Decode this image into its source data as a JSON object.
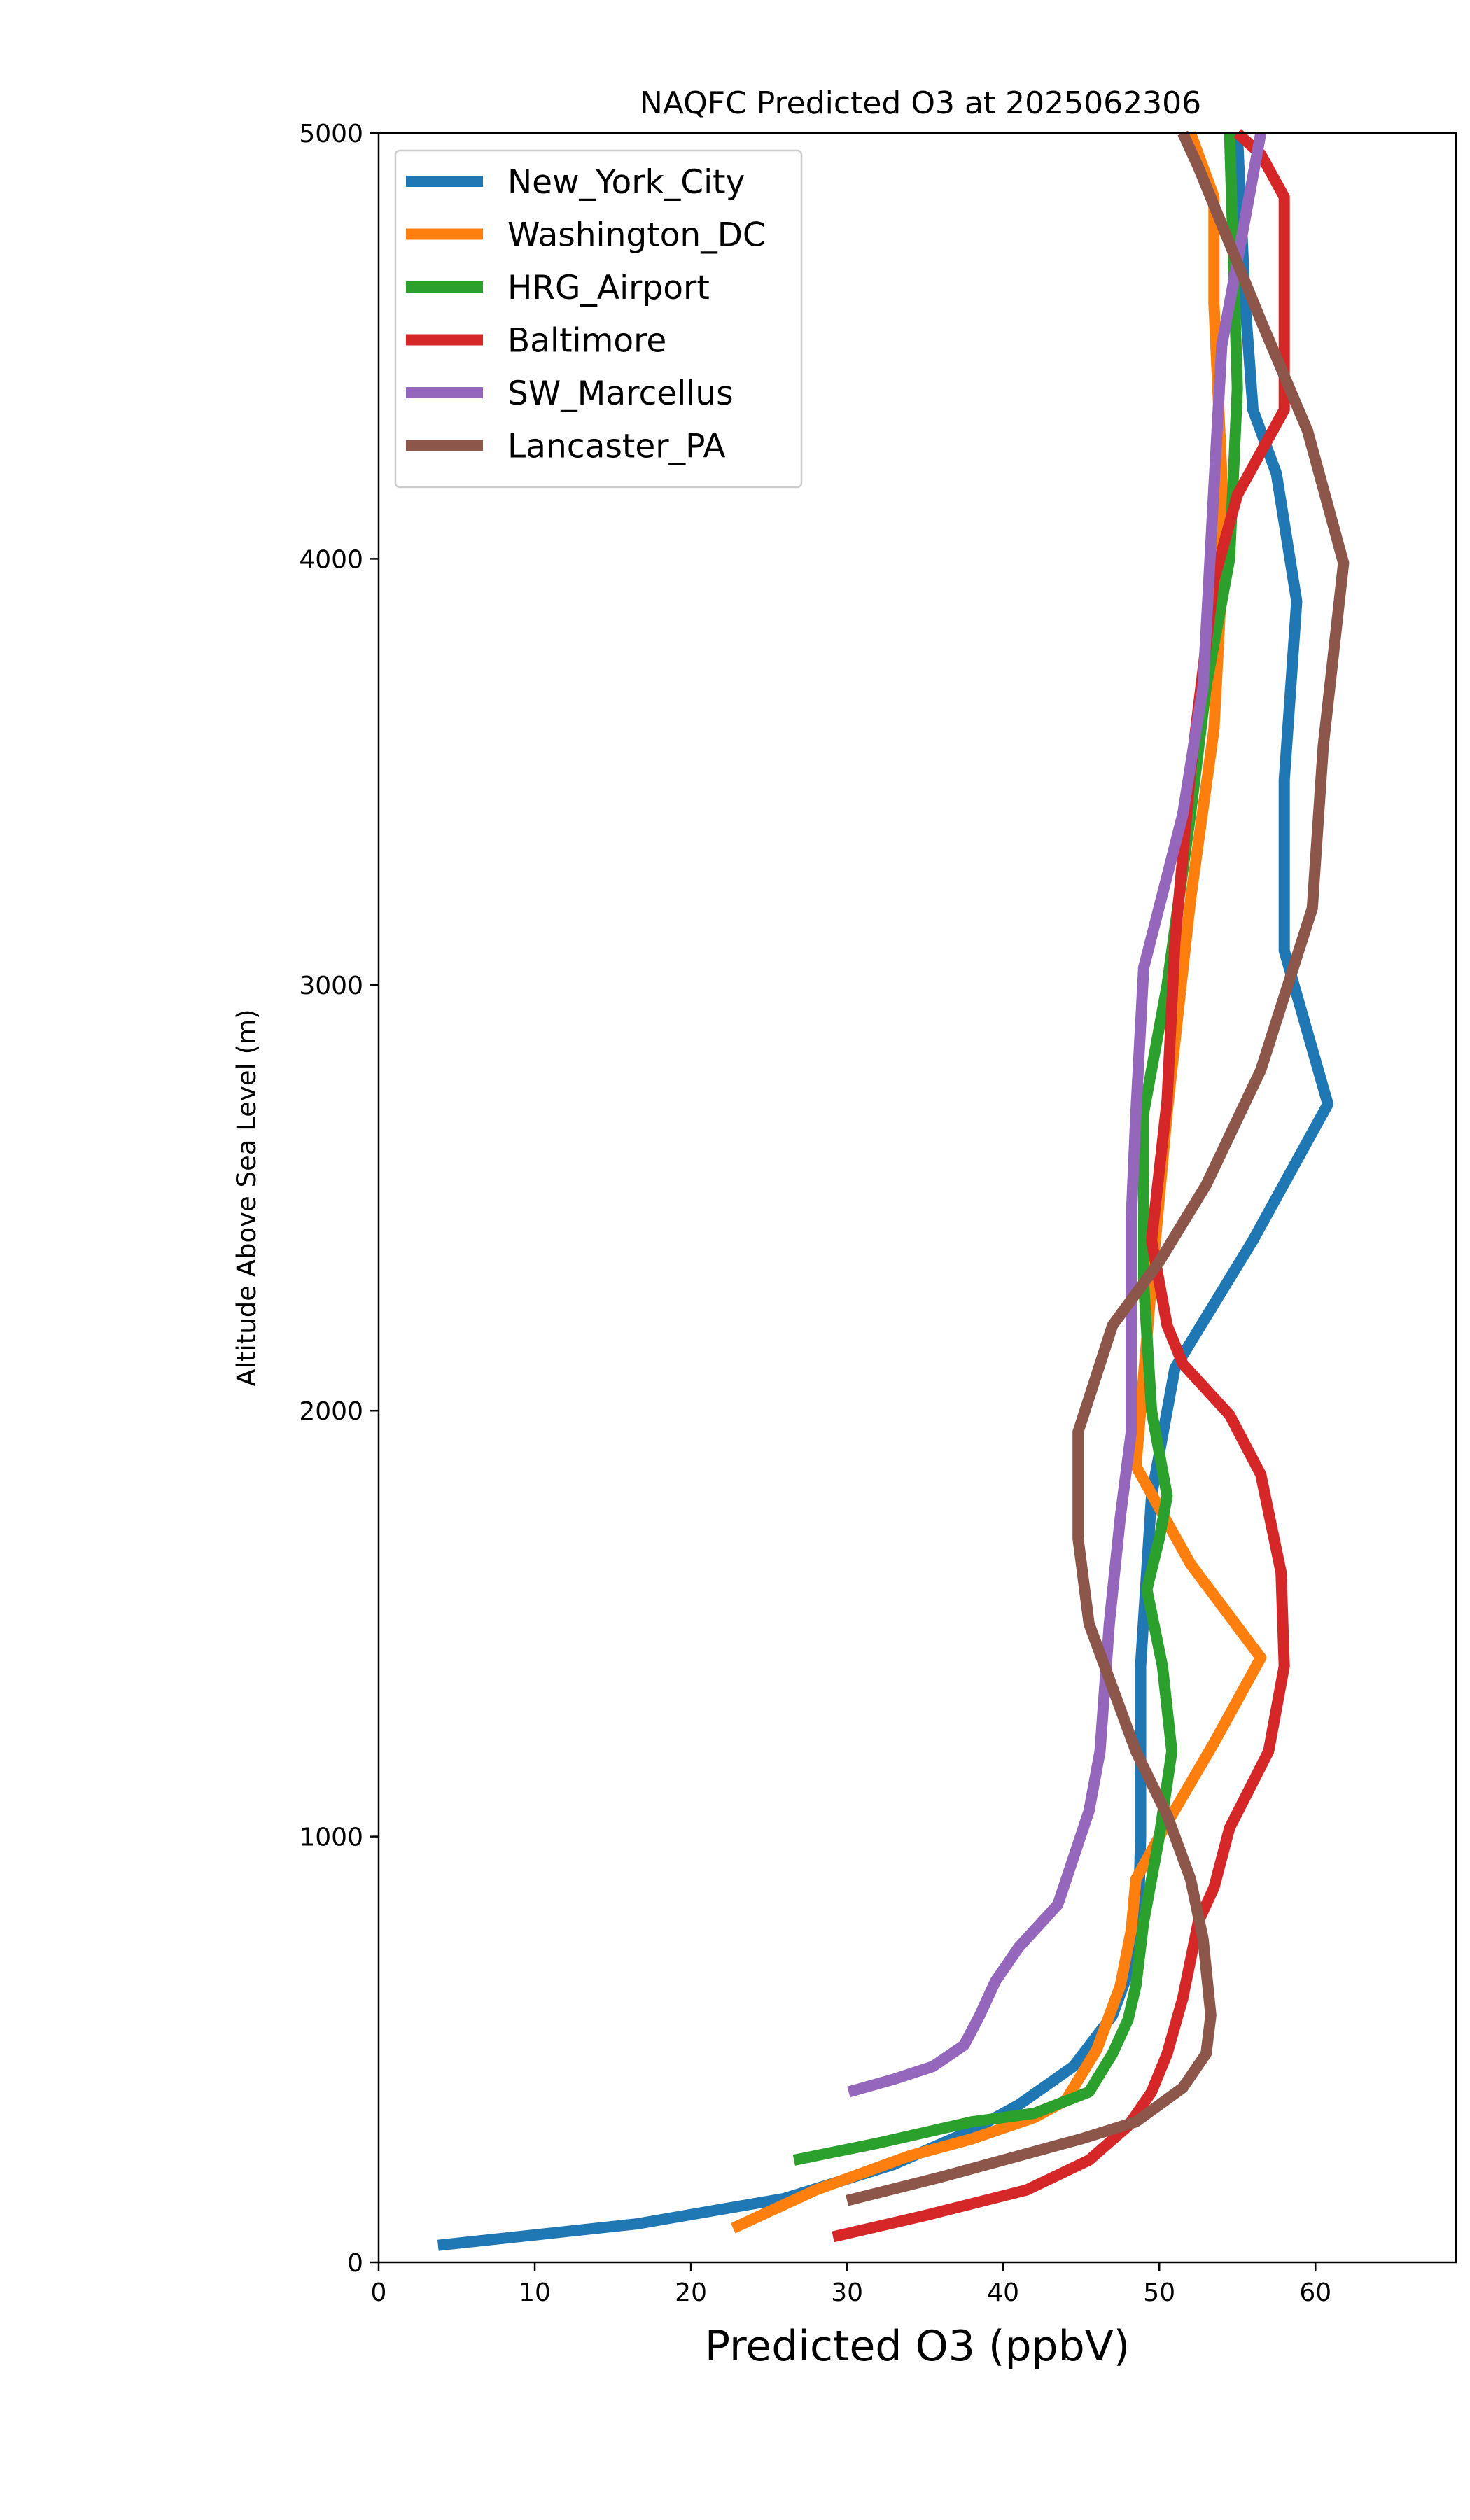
{
  "chart_data": {
    "type": "line",
    "title": "NAQFC Predicted O3 at 2025062306",
    "xlabel": "Predicted O3 (ppbV)",
    "ylabel": "Altitude Above Sea Level (m)",
    "xlim": [
      0,
      69
    ],
    "ylim": [
      0,
      5000
    ],
    "x_ticks": [
      0,
      10,
      20,
      30,
      40,
      50,
      60
    ],
    "y_ticks": [
      0,
      1000,
      2000,
      3000,
      4000,
      5000
    ],
    "grid": false,
    "legend_position": "upper-left",
    "series": [
      {
        "name": "New_York_City",
        "color": "#1f77b4",
        "points": [
          [
            3.8,
            40
          ],
          [
            16.5,
            90
          ],
          [
            26,
            150
          ],
          [
            33,
            230
          ],
          [
            38,
            310
          ],
          [
            41,
            370
          ],
          [
            44.5,
            460
          ],
          [
            47,
            580
          ],
          [
            48.2,
            700
          ],
          [
            48.7,
            850
          ],
          [
            48.8,
            1000
          ],
          [
            48.8,
            1400
          ],
          [
            49.5,
            1800
          ],
          [
            51,
            2100
          ],
          [
            56,
            2400
          ],
          [
            60.8,
            2720
          ],
          [
            58,
            3080
          ],
          [
            58,
            3480
          ],
          [
            58.8,
            3900
          ],
          [
            57.5,
            4200
          ],
          [
            56,
            4350
          ],
          [
            55.5,
            4600
          ],
          [
            55,
            5000
          ]
        ]
      },
      {
        "name": "Washington_DC",
        "color": "#ff7f0e",
        "points": [
          [
            22.7,
            80
          ],
          [
            28,
            170
          ],
          [
            34,
            250
          ],
          [
            38,
            290
          ],
          [
            42,
            340
          ],
          [
            44,
            380
          ],
          [
            46,
            500
          ],
          [
            47.5,
            650
          ],
          [
            48.2,
            780
          ],
          [
            48.5,
            900
          ],
          [
            50,
            1000
          ],
          [
            53.5,
            1220
          ],
          [
            56.5,
            1420
          ],
          [
            52,
            1640
          ],
          [
            48.5,
            1870
          ],
          [
            49.5,
            2300
          ],
          [
            50.5,
            2700
          ],
          [
            52,
            3200
          ],
          [
            53.5,
            3600
          ],
          [
            54,
            3950
          ],
          [
            54,
            4200
          ],
          [
            53.5,
            4600
          ],
          [
            53.5,
            4850
          ],
          [
            52,
            5000
          ]
        ]
      },
      {
        "name": "HRG_Airport",
        "color": "#2ca02c",
        "points": [
          [
            26.6,
            240
          ],
          [
            32,
            280
          ],
          [
            38,
            330
          ],
          [
            42,
            350
          ],
          [
            45.5,
            400
          ],
          [
            47,
            490
          ],
          [
            48,
            570
          ],
          [
            48.5,
            650
          ],
          [
            49,
            800
          ],
          [
            49.5,
            900
          ],
          [
            50,
            1000
          ],
          [
            50.8,
            1200
          ],
          [
            50.2,
            1400
          ],
          [
            49.2,
            1580
          ],
          [
            50,
            1700
          ],
          [
            50.5,
            1800
          ],
          [
            49.5,
            2000
          ],
          [
            49,
            2300
          ],
          [
            49,
            2700
          ],
          [
            50.5,
            3000
          ],
          [
            52,
            3400
          ],
          [
            53,
            3700
          ],
          [
            54.5,
            4000
          ],
          [
            55,
            4400
          ],
          [
            54.5,
            5000
          ]
        ]
      },
      {
        "name": "Baltimore",
        "color": "#d62728",
        "points": [
          [
            29.1,
            60
          ],
          [
            35,
            110
          ],
          [
            41.5,
            170
          ],
          [
            45.5,
            240
          ],
          [
            48,
            320
          ],
          [
            49.5,
            400
          ],
          [
            50.5,
            490
          ],
          [
            51.5,
            620
          ],
          [
            52.5,
            800
          ],
          [
            53.5,
            880
          ],
          [
            54.5,
            1020
          ],
          [
            57,
            1200
          ],
          [
            58,
            1400
          ],
          [
            57.8,
            1620
          ],
          [
            56.5,
            1850
          ],
          [
            54.5,
            1990
          ],
          [
            51.5,
            2110
          ],
          [
            50.5,
            2200
          ],
          [
            49.5,
            2400
          ],
          [
            50.5,
            2730
          ],
          [
            51,
            3100
          ],
          [
            52,
            3500
          ],
          [
            53.5,
            3950
          ],
          [
            55,
            4150
          ],
          [
            58,
            4350
          ],
          [
            58,
            4850
          ],
          [
            56.5,
            4950
          ],
          [
            55,
            5000
          ]
        ]
      },
      {
        "name": "SW_Marcellus",
        "color": "#9467bd",
        "points": [
          [
            30.1,
            400
          ],
          [
            33,
            430
          ],
          [
            35.5,
            460
          ],
          [
            37.5,
            510
          ],
          [
            38.5,
            580
          ],
          [
            39.5,
            660
          ],
          [
            41,
            740
          ],
          [
            43.5,
            840
          ],
          [
            44.5,
            950
          ],
          [
            45.5,
            1060
          ],
          [
            46.2,
            1200
          ],
          [
            46.8,
            1500
          ],
          [
            47.5,
            1750
          ],
          [
            48.2,
            1950
          ],
          [
            48.2,
            2450
          ],
          [
            48.5,
            2700
          ],
          [
            49,
            3040
          ],
          [
            51.5,
            3400
          ],
          [
            52.8,
            3700
          ],
          [
            53.5,
            4170
          ],
          [
            54,
            4500
          ],
          [
            55,
            4700
          ],
          [
            56.5,
            5000
          ]
        ]
      },
      {
        "name": "Lancaster_PA",
        "color": "#8c564b",
        "points": [
          [
            30,
            145
          ],
          [
            36,
            200
          ],
          [
            41,
            250
          ],
          [
            45,
            290
          ],
          [
            48.5,
            330
          ],
          [
            51.5,
            410
          ],
          [
            53,
            490
          ],
          [
            53.3,
            580
          ],
          [
            52.8,
            760
          ],
          [
            52,
            900
          ],
          [
            50.5,
            1050
          ],
          [
            48.5,
            1200
          ],
          [
            47,
            1350
          ],
          [
            45.5,
            1500
          ],
          [
            44.8,
            1700
          ],
          [
            44.8,
            1950
          ],
          [
            47,
            2200
          ],
          [
            50,
            2350
          ],
          [
            53,
            2530
          ],
          [
            56.5,
            2800
          ],
          [
            59.8,
            3180
          ],
          [
            60.5,
            3560
          ],
          [
            61.8,
            3990
          ],
          [
            59.5,
            4300
          ],
          [
            56.5,
            4560
          ],
          [
            52.5,
            4920
          ],
          [
            51.5,
            5000
          ]
        ]
      }
    ]
  }
}
